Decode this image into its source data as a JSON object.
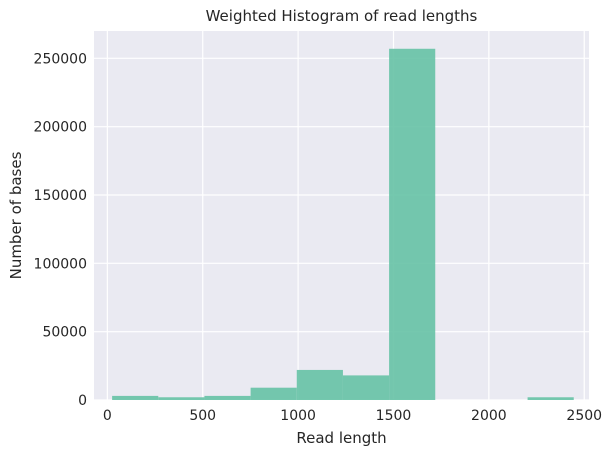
{
  "chart_data": {
    "type": "bar",
    "title": "Weighted Histogram of read lengths",
    "xlabel": "Read length",
    "ylabel": "Number of bases",
    "xlim": [
      -70,
      2525
    ],
    "ylim": [
      0,
      270000
    ],
    "xticks": [
      0,
      500,
      1000,
      1500,
      2000,
      2500
    ],
    "xtick_labels": [
      "0",
      "500",
      "1000",
      "1500",
      "2000",
      "2500"
    ],
    "yticks": [
      0,
      50000,
      100000,
      150000,
      200000,
      250000
    ],
    "ytick_labels": [
      "0",
      "50000",
      "100000",
      "150000",
      "200000",
      "250000"
    ],
    "grid": true,
    "bins": [
      {
        "x0": 25,
        "x1": 267,
        "value": 3000
      },
      {
        "x0": 267,
        "x1": 509,
        "value": 2000
      },
      {
        "x0": 509,
        "x1": 751,
        "value": 3000
      },
      {
        "x0": 751,
        "x1": 993,
        "value": 9000
      },
      {
        "x0": 993,
        "x1": 1235,
        "value": 22000
      },
      {
        "x0": 1235,
        "x1": 1477,
        "value": 18000
      },
      {
        "x0": 1477,
        "x1": 1719,
        "value": 257000
      },
      {
        "x0": 1719,
        "x1": 1961,
        "value": 0
      },
      {
        "x0": 1961,
        "x1": 2203,
        "value": 0
      },
      {
        "x0": 2203,
        "x1": 2445,
        "value": 2000
      }
    ],
    "bar_color": "#66c2a5",
    "background_color": "#eaeaf2",
    "grid_color": "#ffffff"
  }
}
